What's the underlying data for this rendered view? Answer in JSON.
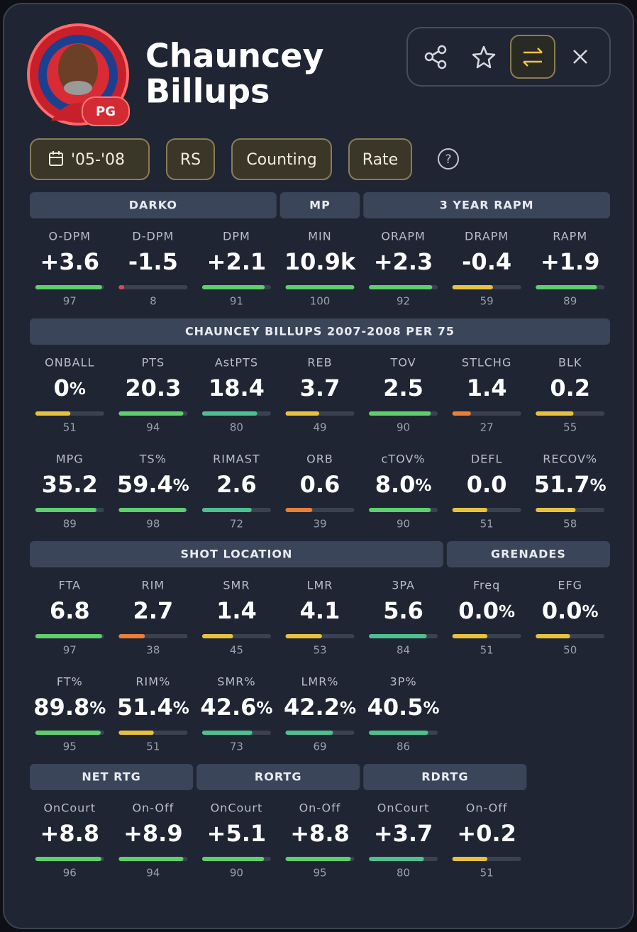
{
  "header": {
    "name": [
      "Chauncey",
      "Billups"
    ],
    "position": "PG"
  },
  "filters": {
    "season": "'05-'08",
    "buttons": [
      "RS",
      "Counting",
      "Rate"
    ],
    "help": "?"
  },
  "sections": [
    {
      "groups": [
        {
          "title": "DARKO",
          "rows": [
            [
              {
                "label": "O-DPM",
                "value": "+3.6",
                "pct": 97
              },
              {
                "label": "D-DPM",
                "value": "-1.5",
                "pct": 8
              },
              {
                "label": "DPM",
                "value": "+2.1",
                "pct": 91
              }
            ]
          ]
        },
        {
          "title": "MP",
          "rows": [
            [
              {
                "label": "MIN",
                "value": "10.9k",
                "pct": 100
              }
            ]
          ]
        },
        {
          "title": "3 YEAR RAPM",
          "rows": [
            [
              {
                "label": "ORAPM",
                "value": "+2.3",
                "pct": 92
              },
              {
                "label": "DRAPM",
                "value": "-0.4",
                "pct": 59
              },
              {
                "label": "RAPM",
                "value": "+1.9",
                "pct": 89
              }
            ]
          ]
        }
      ]
    },
    {
      "groups": [
        {
          "title": "CHAUNCEY BILLUPS 2007-2008 PER 75",
          "rows": [
            [
              {
                "label": "ONBALL",
                "value": "0%",
                "pct": 51
              },
              {
                "label": "PTS",
                "value": "20.3",
                "pct": 94
              },
              {
                "label": "AstPTS",
                "value": "18.4",
                "pct": 80
              },
              {
                "label": "REB",
                "value": "3.7",
                "pct": 49
              },
              {
                "label": "TOV",
                "value": "2.5",
                "pct": 90
              },
              {
                "label": "STLCHG",
                "value": "1.4",
                "pct": 27
              },
              {
                "label": "BLK",
                "value": "0.2",
                "pct": 55
              }
            ],
            [
              {
                "label": "MPG",
                "value": "35.2",
                "pct": 89
              },
              {
                "label": "TS%",
                "value": "59.4%",
                "pct": 98
              },
              {
                "label": "RIMAST",
                "value": "2.6",
                "pct": 72
              },
              {
                "label": "ORB",
                "value": "0.6",
                "pct": 39
              },
              {
                "label": "cTOV%",
                "value": "8.0%",
                "pct": 90
              },
              {
                "label": "DEFL",
                "value": "0.0",
                "pct": 51
              },
              {
                "label": "RECOV%",
                "value": "51.7%",
                "pct": 58
              }
            ]
          ]
        }
      ]
    },
    {
      "groups": [
        {
          "title": "SHOT LOCATION",
          "rows": [
            [
              {
                "label": "FTA",
                "value": "6.8",
                "pct": 97
              },
              {
                "label": "RIM",
                "value": "2.7",
                "pct": 38
              },
              {
                "label": "SMR",
                "value": "1.4",
                "pct": 45
              },
              {
                "label": "LMR",
                "value": "4.1",
                "pct": 53
              },
              {
                "label": "3PA",
                "value": "5.6",
                "pct": 84
              }
            ],
            [
              {
                "label": "FT%",
                "value": "89.8%",
                "pct": 95
              },
              {
                "label": "RIM%",
                "value": "51.4%",
                "pct": 51
              },
              {
                "label": "SMR%",
                "value": "42.6%",
                "pct": 73
              },
              {
                "label": "LMR%",
                "value": "42.2%",
                "pct": 69
              },
              {
                "label": "3P%",
                "value": "40.5%",
                "pct": 86
              }
            ]
          ]
        },
        {
          "title": "GRENADES",
          "rows": [
            [
              {
                "label": "Freq",
                "value": "0.0%",
                "pct": 51
              },
              {
                "label": "EFG",
                "value": "0.0%",
                "pct": 50
              }
            ]
          ]
        }
      ]
    },
    {
      "groups": [
        {
          "title": "NET RTG",
          "rows": [
            [
              {
                "label": "OnCourt",
                "value": "+8.8",
                "pct": 96
              },
              {
                "label": "On-Off",
                "value": "+8.9",
                "pct": 94
              }
            ]
          ]
        },
        {
          "title": "RORTG",
          "rows": [
            [
              {
                "label": "OnCourt",
                "value": "+5.1",
                "pct": 90
              },
              {
                "label": "On-Off",
                "value": "+8.8",
                "pct": 95
              }
            ]
          ]
        },
        {
          "title": "RDRTG",
          "rows": [
            [
              {
                "label": "OnCourt",
                "value": "+3.7",
                "pct": 80
              },
              {
                "label": "On-Off",
                "value": "+0.2",
                "pct": 51
              }
            ]
          ]
        }
      ]
    }
  ]
}
